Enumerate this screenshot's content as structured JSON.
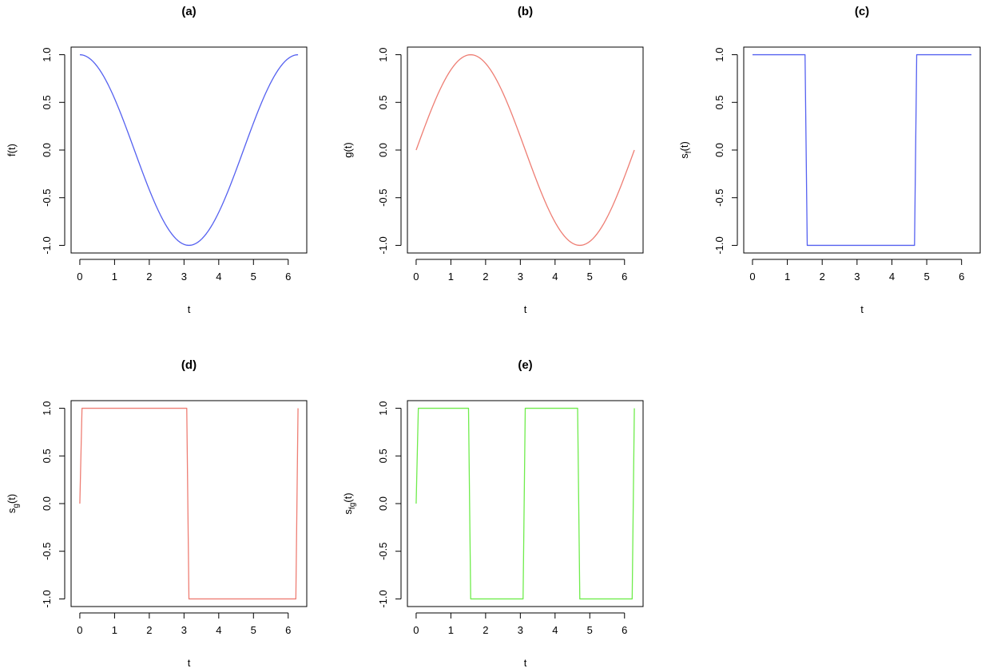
{
  "chart_data": [
    {
      "type": "line",
      "title": "(a)",
      "xlabel": "t",
      "ylabel": "f(t)",
      "xlim": [
        0,
        6.2832
      ],
      "ylim": [
        -1,
        1
      ],
      "x_ticks": [
        "0",
        "1",
        "2",
        "3",
        "4",
        "5",
        "6"
      ],
      "y_ticks": [
        "-1.0",
        "-0.5",
        "0.0",
        "0.5",
        "1.0"
      ],
      "series": [
        {
          "function": "cos(t)",
          "color": "#5561f0",
          "x_range": [
            0,
            6.2832
          ]
        }
      ]
    },
    {
      "type": "line",
      "title": "(b)",
      "xlabel": "t",
      "ylabel": "g(t)",
      "xlim": [
        0,
        6.2832
      ],
      "ylim": [
        -1,
        1
      ],
      "x_ticks": [
        "0",
        "1",
        "2",
        "3",
        "4",
        "5",
        "6"
      ],
      "y_ticks": [
        "-1.0",
        "-0.5",
        "0.0",
        "0.5",
        "1.0"
      ],
      "series": [
        {
          "function": "sin(t)",
          "color": "#ee7e74",
          "x_range": [
            0,
            6.2832
          ]
        }
      ]
    },
    {
      "type": "line",
      "title": "(c)",
      "xlabel": "t",
      "ylabel": {
        "base": "s",
        "sub": "f",
        "suffix": "(t)"
      },
      "xlim": [
        0,
        6.2832
      ],
      "ylim": [
        -1,
        1
      ],
      "x_ticks": [
        "0",
        "1",
        "2",
        "3",
        "4",
        "5",
        "6"
      ],
      "y_ticks": [
        "-1.0",
        "-0.5",
        "0.0",
        "0.5",
        "1.0"
      ],
      "series": [
        {
          "function": "sign(cos(t))",
          "color": "#5561f0",
          "x_range": [
            0,
            6.2832
          ]
        }
      ]
    },
    {
      "type": "line",
      "title": "(d)",
      "xlabel": "t",
      "ylabel": {
        "base": "s",
        "sub": "g",
        "suffix": "(t)"
      },
      "xlim": [
        0,
        6.2832
      ],
      "ylim": [
        -1,
        1
      ],
      "x_ticks": [
        "0",
        "1",
        "2",
        "3",
        "4",
        "5",
        "6"
      ],
      "y_ticks": [
        "-1.0",
        "-0.5",
        "0.0",
        "0.5",
        "1.0"
      ],
      "series": [
        {
          "function": "sign(sin(t))",
          "color": "#ee7e74",
          "x_range": [
            0,
            6.2832
          ]
        }
      ]
    },
    {
      "type": "line",
      "title": "(e)",
      "xlabel": "t",
      "ylabel": {
        "base": "s",
        "sub": "fg",
        "suffix": "(t)"
      },
      "xlim": [
        0,
        6.2832
      ],
      "ylim": [
        -1,
        1
      ],
      "x_ticks": [
        "0",
        "1",
        "2",
        "3",
        "4",
        "5",
        "6"
      ],
      "y_ticks": [
        "-1.0",
        "-0.5",
        "0.0",
        "0.5",
        "1.0"
      ],
      "series": [
        {
          "function": "sign(sin(t)*cos(t))",
          "color": "#6fec4c",
          "x_range": [
            0,
            6.2832
          ]
        }
      ]
    }
  ]
}
